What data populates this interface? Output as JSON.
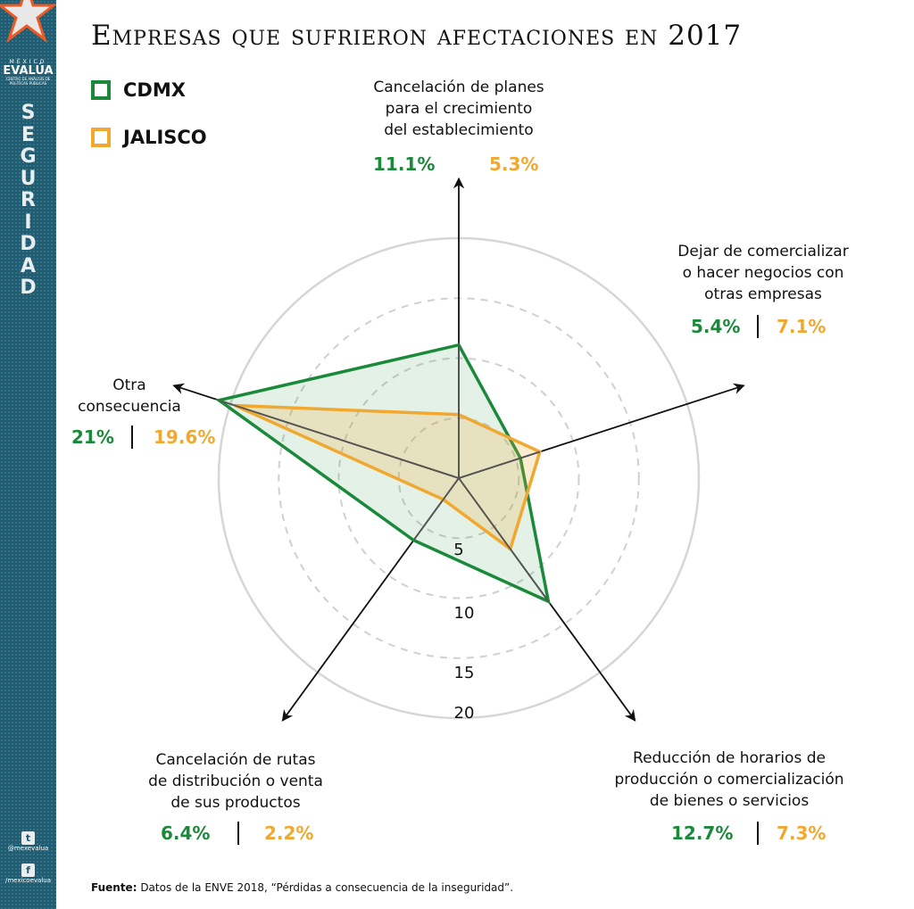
{
  "title": "Empresas que sufrieron afectaciones en 2017",
  "sidebar": {
    "brand_top": "MÉXICO",
    "brand_name": "EVALÚA",
    "brand_sub": "CENTRO DE ANÁLISIS DE POLÍTICAS PÚBLICAS",
    "section": "SEGURIDAD",
    "twitter": "@mexevalua",
    "facebook": "/mexicoevalua",
    "twitter_icon": "twitter-icon",
    "facebook_icon": "facebook-icon"
  },
  "source_label": "Fuente:",
  "source_text": " Datos de la ENVE 2018, “Pérdidas a consecuencia de la inseguridad”.",
  "chart_data": {
    "type": "radar",
    "title": "Empresas que sufrieron afectaciones en 2017",
    "categories": [
      "Cancelación de planes para el crecimiento del establecimiento",
      "Dejar de comercializar o hacer negocios con otras empresas",
      "Reducción de horarios de producción o comercialización de bienes o servicios",
      "Cancelación de rutas de distribución o venta de sus productos",
      "Otra consecuencia"
    ],
    "category_lines": [
      [
        "Cancelación de planes",
        "para el crecimiento",
        "del establecimiento"
      ],
      [
        "Dejar de comercializar",
        "o hacer negocios con",
        "otras empresas"
      ],
      [
        "Reducción de horarios de",
        "producción o comercialización",
        "de bienes o servicios"
      ],
      [
        "Cancelación de rutas",
        "de distribución o venta",
        "de sus productos"
      ],
      [
        "Otra",
        "consecuencia"
      ]
    ],
    "series": [
      {
        "name": "CDMX",
        "color": "#1a8a3a",
        "values": [
          11.1,
          5.4,
          12.7,
          6.4,
          21
        ],
        "labels": [
          "11.1%",
          "5.4%",
          "12.7%",
          "6.4%",
          "21%"
        ]
      },
      {
        "name": "JALISCO",
        "color": "#f0a830",
        "values": [
          5.3,
          7.1,
          7.3,
          2.2,
          19.6
        ],
        "labels": [
          "5.3%",
          "7.1%",
          "7.3%",
          "2.2%",
          "19.6%"
        ]
      }
    ],
    "rlim": [
      0,
      20
    ],
    "ticks": [
      "5",
      "10",
      "15",
      "20"
    ],
    "legend": "top-left"
  }
}
